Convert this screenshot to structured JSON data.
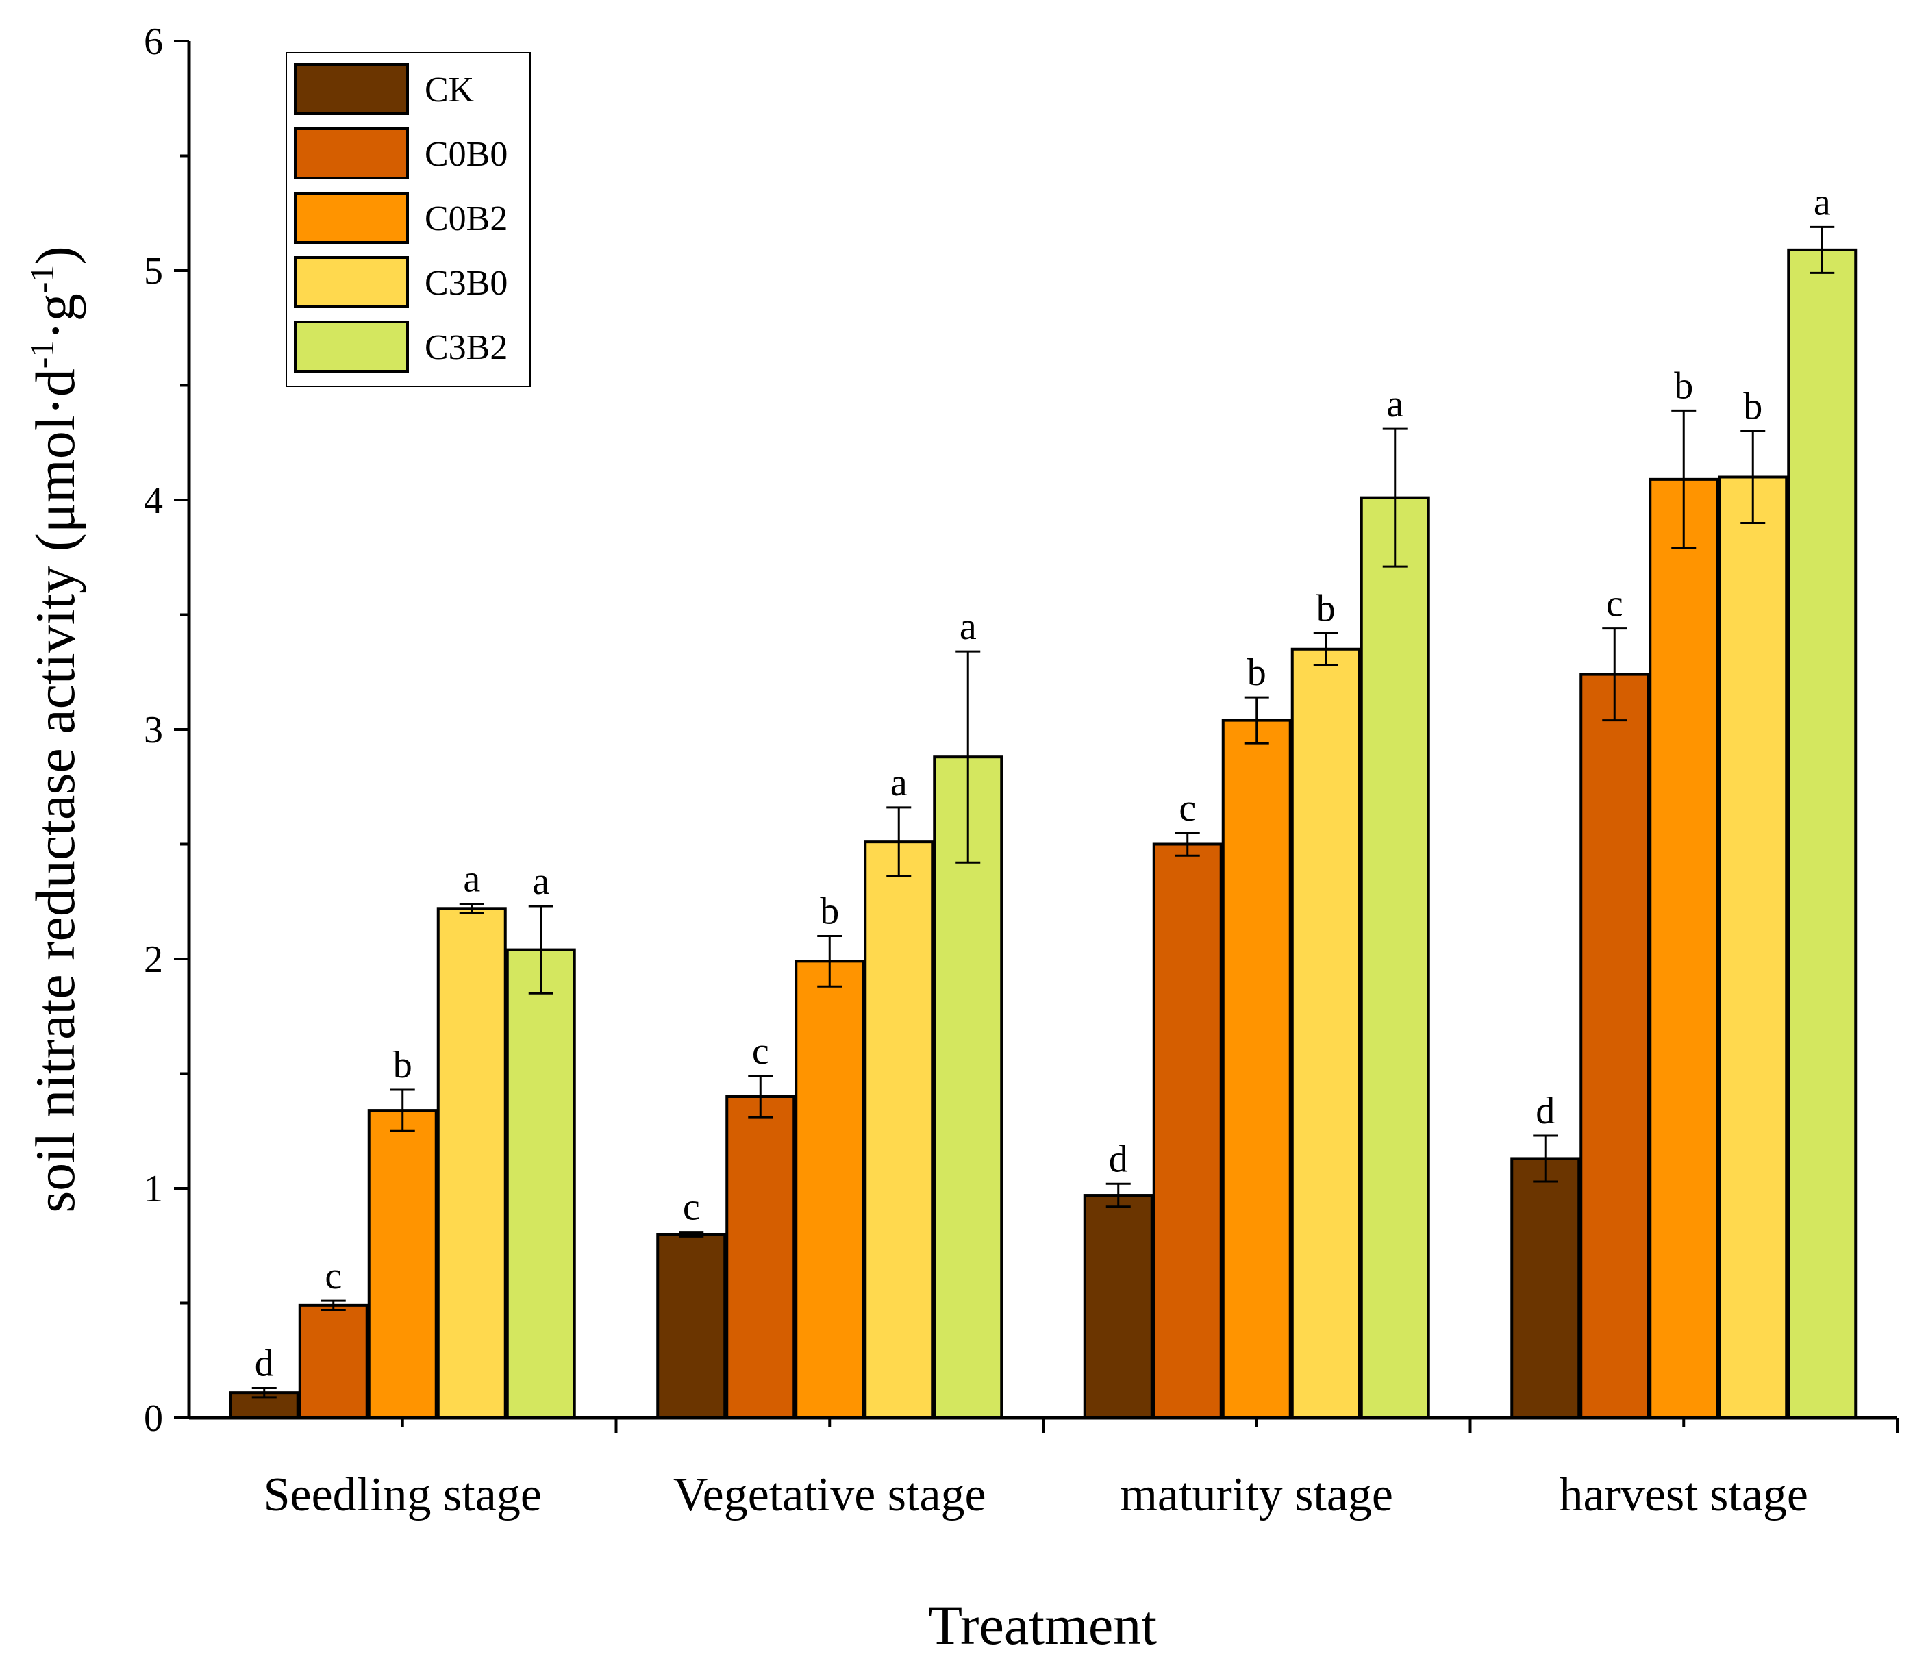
{
  "chart_data": {
    "type": "bar",
    "title": "",
    "xlabel": "Treatment",
    "ylabel": "soil nitrate reductase activity (μmol·d",
    "ylabel_parts": {
      "unit_d_exp": "-1",
      "unit_mid": "·g",
      "unit_g_exp": "-1",
      "close": ")"
    },
    "ylim": [
      0,
      6
    ],
    "yticks": [
      "0",
      "1",
      "2",
      "3",
      "4",
      "5",
      "6"
    ],
    "categories": [
      "Seedling stage",
      "Vegetative stage",
      "maturity stage",
      "harvest stage"
    ],
    "legend_position": "top-left",
    "series": [
      {
        "name": "CK",
        "color": "#6b3500",
        "values": [
          0.11,
          0.8,
          0.97,
          1.13
        ],
        "errors": [
          0.02,
          0.01,
          0.05,
          0.1
        ],
        "letters": [
          "d",
          "c",
          "d",
          "d"
        ]
      },
      {
        "name": "C0B0",
        "color": "#d55e00",
        "values": [
          0.49,
          1.4,
          2.5,
          3.24
        ],
        "errors": [
          0.02,
          0.09,
          0.05,
          0.2
        ],
        "letters": [
          "c",
          "c",
          "c",
          "c"
        ]
      },
      {
        "name": "C0B2",
        "color": "#ff9400",
        "values": [
          1.34,
          1.99,
          3.04,
          4.09
        ],
        "errors": [
          0.09,
          0.11,
          0.1,
          0.3
        ],
        "letters": [
          "b",
          "b",
          "b",
          "b"
        ]
      },
      {
        "name": "C3B0",
        "color": "#ffd94e",
        "values": [
          2.22,
          2.51,
          3.35,
          4.1
        ],
        "errors": [
          0.02,
          0.15,
          0.07,
          0.2
        ],
        "letters": [
          "a",
          "a",
          "b",
          "b"
        ]
      },
      {
        "name": "C3B2",
        "color": "#d4e75f",
        "values": [
          2.04,
          2.88,
          4.01,
          5.09
        ],
        "errors": [
          0.19,
          0.46,
          0.3,
          0.1
        ],
        "letters": [
          "a",
          "a",
          "a",
          "a"
        ]
      }
    ]
  }
}
